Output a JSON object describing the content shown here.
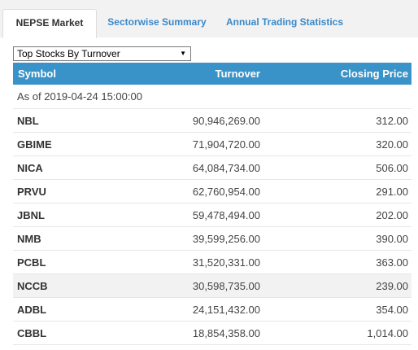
{
  "tabs": [
    {
      "label": "NEPSE Market",
      "active": true
    },
    {
      "label": "Sectorwise Summary",
      "active": false
    },
    {
      "label": "Annual Trading Statistics",
      "active": false
    }
  ],
  "dropdown": {
    "selected": "Top Stocks By Turnover"
  },
  "table": {
    "headers": {
      "symbol": "Symbol",
      "turnover": "Turnover",
      "closing_price": "Closing Price"
    },
    "as_of": "As of 2019-04-24 15:00:00",
    "rows": [
      {
        "symbol": "NBL",
        "turnover": "90,946,269.00",
        "closing_price": "312.00"
      },
      {
        "symbol": "GBIME",
        "turnover": "71,904,720.00",
        "closing_price": "320.00"
      },
      {
        "symbol": "NICA",
        "turnover": "64,084,734.00",
        "closing_price": "506.00"
      },
      {
        "symbol": "PRVU",
        "turnover": "62,760,954.00",
        "closing_price": "291.00"
      },
      {
        "symbol": "JBNL",
        "turnover": "59,478,494.00",
        "closing_price": "202.00"
      },
      {
        "symbol": "NMB",
        "turnover": "39,599,256.00",
        "closing_price": "390.00"
      },
      {
        "symbol": "PCBL",
        "turnover": "31,520,331.00",
        "closing_price": "363.00"
      },
      {
        "symbol": "NCCB",
        "turnover": "30,598,735.00",
        "closing_price": "239.00"
      },
      {
        "symbol": "ADBL",
        "turnover": "24,151,432.00",
        "closing_price": "354.00"
      },
      {
        "symbol": "CBBL",
        "turnover": "18,854,358.00",
        "closing_price": "1,014.00"
      }
    ]
  },
  "colors": {
    "header_bg": "#3a93c8",
    "tab_link": "#3a89c9",
    "highlight_row": "#f2f2f2"
  }
}
